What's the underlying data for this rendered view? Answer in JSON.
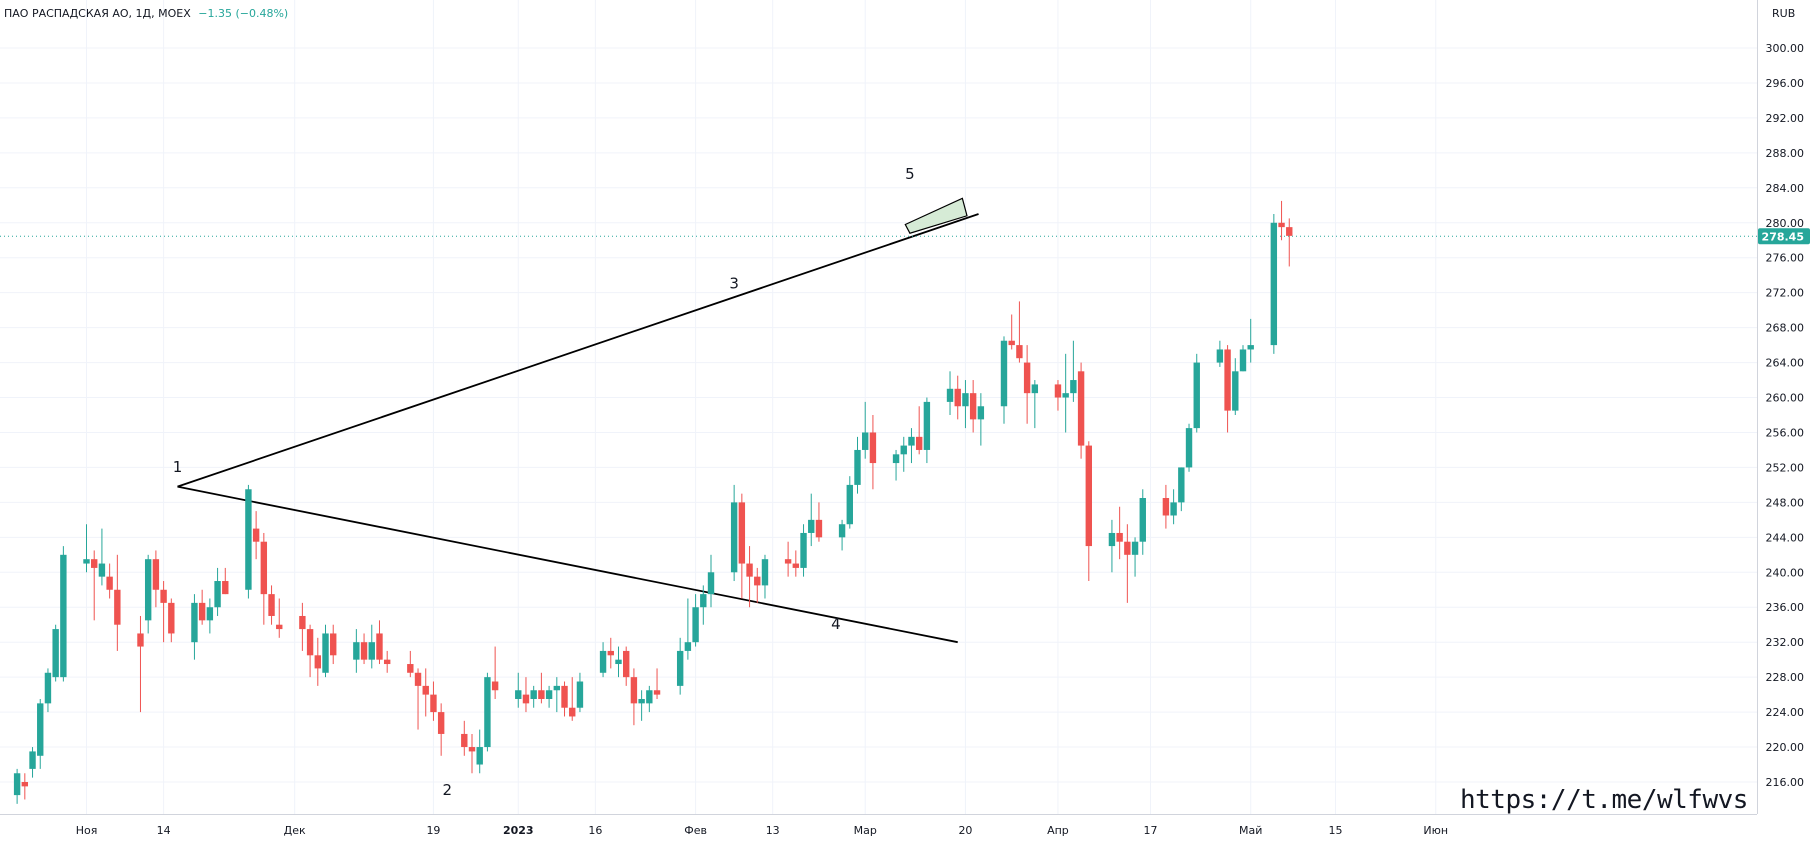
{
  "header": {
    "symbol": "ПАО РАСПАДСКАЯ АО, 1Д, MOEX",
    "change": "−1.35 (−0.48%)"
  },
  "currency": "RUB",
  "last_price_label": "278.45",
  "watermark_url": "https://t.me/wlfwvs",
  "colors": {
    "up": "#26a69a",
    "down": "#ef5350",
    "last_price": "#26a69a",
    "channel_fill": "#cfe8cf"
  },
  "chart_data": {
    "type": "candlestick",
    "y_axis": {
      "min": 212,
      "max": 302,
      "ticks": [
        216,
        220,
        224,
        228,
        232,
        236,
        240,
        244,
        248,
        252,
        256,
        260,
        264,
        268,
        272,
        276,
        280,
        284,
        288,
        292,
        296,
        300
      ]
    },
    "x_axis_labels": [
      {
        "label": "Ноя",
        "day": 0
      },
      {
        "label": "14",
        "day": 10
      },
      {
        "label": "Дек",
        "day": 27
      },
      {
        "label": "19",
        "day": 45
      },
      {
        "label": "2023",
        "day": 56
      },
      {
        "label": "16",
        "day": 66
      },
      {
        "label": "Фев",
        "day": 79
      },
      {
        "label": "13",
        "day": 89
      },
      {
        "label": "Мар",
        "day": 101
      },
      {
        "label": "20",
        "day": 114
      },
      {
        "label": "Апр",
        "day": 126
      },
      {
        "label": "17",
        "day": 138
      },
      {
        "label": "Май",
        "day": 151
      },
      {
        "label": "15",
        "day": 162
      },
      {
        "label": "Июн",
        "day": 175
      }
    ],
    "last_price": 278.45,
    "candles": [
      [
        -9,
        214.5,
        217.5,
        213.5,
        217.0
      ],
      [
        -8,
        216.0,
        217.0,
        214.0,
        215.5
      ],
      [
        -7,
        217.5,
        220.0,
        216.5,
        219.5
      ],
      [
        -6,
        219.0,
        225.5,
        217.5,
        225.0
      ],
      [
        -5,
        225.0,
        229.0,
        224.0,
        228.5
      ],
      [
        -4,
        228.0,
        234.0,
        227.5,
        233.5
      ],
      [
        -3,
        228.0,
        243.0,
        227.5,
        242.0
      ],
      [
        0,
        241.0,
        245.5,
        240.0,
        241.5
      ],
      [
        1,
        241.5,
        242.5,
        234.5,
        240.5
      ],
      [
        2,
        239.5,
        245.0,
        238.5,
        241.0
      ],
      [
        3,
        239.5,
        241.0,
        237.0,
        238.0
      ],
      [
        4,
        238.0,
        242.0,
        231.0,
        234.0
      ],
      [
        7,
        233.0,
        235.0,
        224.0,
        231.5
      ],
      [
        8,
        234.5,
        242.0,
        233.0,
        241.5
      ],
      [
        9,
        241.5,
        242.5,
        236.0,
        238.0
      ],
      [
        10,
        238.0,
        239.0,
        232.0,
        236.5
      ],
      [
        11,
        236.5,
        237.0,
        232.0,
        233.0
      ],
      [
        14,
        232.0,
        237.5,
        230.0,
        236.5
      ],
      [
        15,
        236.5,
        238.0,
        234.0,
        234.5
      ],
      [
        16,
        234.5,
        237.0,
        233.0,
        236.0
      ],
      [
        17,
        236.0,
        240.5,
        235.0,
        239.0
      ],
      [
        18,
        239.0,
        240.5,
        237.5,
        237.5
      ],
      [
        21,
        238.0,
        250.0,
        237.0,
        249.5
      ],
      [
        22,
        245.0,
        247.0,
        241.5,
        243.5
      ],
      [
        23,
        243.5,
        244.5,
        234.0,
        237.5
      ],
      [
        24,
        237.5,
        238.5,
        234.0,
        235.0
      ],
      [
        25,
        234.0,
        237.0,
        232.5,
        233.5
      ],
      [
        28,
        235.0,
        236.5,
        231.0,
        233.5
      ],
      [
        29,
        233.5,
        234.0,
        228.0,
        230.5
      ],
      [
        30,
        230.5,
        232.5,
        227.0,
        229.0
      ],
      [
        31,
        228.5,
        234.0,
        228.0,
        233.0
      ],
      [
        32,
        233.0,
        234.0,
        229.5,
        230.5
      ],
      [
        35,
        230.0,
        233.5,
        228.5,
        232.0
      ],
      [
        36,
        232.0,
        233.0,
        229.5,
        230.0
      ],
      [
        37,
        230.0,
        234.0,
        229.0,
        232.0
      ],
      [
        38,
        233.0,
        234.5,
        229.5,
        230.0
      ],
      [
        39,
        230.0,
        231.0,
        228.5,
        229.5
      ],
      [
        42,
        229.5,
        231.0,
        228.0,
        228.5
      ],
      [
        43,
        228.5,
        229.0,
        222.0,
        227.0
      ],
      [
        44,
        227.0,
        229.0,
        223.5,
        226.0
      ],
      [
        45,
        226.0,
        227.5,
        223.0,
        224.0
      ],
      [
        46,
        224.0,
        225.0,
        219.0,
        221.5
      ],
      [
        49,
        221.5,
        223.0,
        219.0,
        220.0
      ],
      [
        50,
        220.0,
        221.5,
        217.0,
        219.5
      ],
      [
        51,
        218.0,
        222.0,
        217.0,
        220.0
      ],
      [
        52,
        220.0,
        228.5,
        219.5,
        228.0
      ],
      [
        53,
        227.5,
        231.5,
        225.5,
        226.5
      ],
      [
        56,
        225.5,
        228.5,
        224.5,
        226.5
      ],
      [
        57,
        226.0,
        228.0,
        224.0,
        225.0
      ],
      [
        58,
        225.5,
        227.0,
        224.5,
        226.5
      ],
      [
        59,
        226.5,
        228.5,
        225.0,
        225.5
      ],
      [
        60,
        225.5,
        227.0,
        224.5,
        226.5
      ],
      [
        61,
        226.5,
        228.0,
        224.0,
        227.0
      ],
      [
        62,
        227.0,
        227.5,
        223.5,
        224.5
      ],
      [
        63,
        224.5,
        228.0,
        223.0,
        223.5
      ],
      [
        64,
        224.5,
        228.5,
        224.0,
        227.5
      ],
      [
        67,
        228.5,
        232.0,
        228.0,
        231.0
      ],
      [
        68,
        231.0,
        232.5,
        229.0,
        230.5
      ],
      [
        69,
        229.5,
        231.5,
        228.0,
        230.0
      ],
      [
        70,
        231.0,
        231.5,
        227.0,
        228.0
      ],
      [
        71,
        228.0,
        229.0,
        222.5,
        225.0
      ],
      [
        72,
        225.0,
        226.5,
        223.0,
        225.5
      ],
      [
        73,
        225.0,
        227.0,
        224.0,
        226.5
      ],
      [
        74,
        226.5,
        229.0,
        225.5,
        226.0
      ],
      [
        77,
        227.0,
        232.5,
        226.0,
        231.0
      ],
      [
        78,
        231.0,
        237.0,
        230.0,
        232.0
      ],
      [
        79,
        232.0,
        237.5,
        231.5,
        236.0
      ],
      [
        80,
        236.0,
        238.5,
        234.0,
        237.5
      ],
      [
        81,
        237.5,
        242.0,
        236.0,
        240.0
      ],
      [
        84,
        240.0,
        250.0,
        239.0,
        248.0
      ],
      [
        85,
        248.0,
        249.0,
        237.0,
        241.0
      ],
      [
        86,
        241.0,
        243.0,
        236.0,
        239.5
      ],
      [
        87,
        239.5,
        240.5,
        236.5,
        238.5
      ],
      [
        88,
        238.5,
        242.0,
        237.0,
        241.5
      ],
      [
        91,
        241.5,
        243.5,
        239.5,
        241.0
      ],
      [
        92,
        241.0,
        242.5,
        239.5,
        240.5
      ],
      [
        93,
        240.5,
        245.5,
        239.5,
        244.5
      ],
      [
        94,
        244.5,
        249.0,
        243.0,
        246.0
      ],
      [
        95,
        246.0,
        248.0,
        243.5,
        244.0
      ],
      [
        98,
        244.0,
        246.0,
        242.5,
        245.5
      ],
      [
        99,
        245.5,
        251.0,
        245.0,
        250.0
      ],
      [
        100,
        250.0,
        255.5,
        249.0,
        254.0
      ],
      [
        101,
        254.0,
        259.5,
        253.0,
        256.0
      ],
      [
        102,
        256.0,
        258.0,
        249.5,
        252.5
      ],
      [
        105,
        252.5,
        254.0,
        250.5,
        253.5
      ],
      [
        106,
        253.5,
        255.5,
        251.5,
        254.5
      ],
      [
        107,
        254.5,
        256.5,
        252.5,
        255.5
      ],
      [
        108,
        255.5,
        259.0,
        253.5,
        254.0
      ],
      [
        109,
        254.0,
        260.0,
        252.5,
        259.5
      ],
      [
        112,
        259.5,
        263.0,
        258.0,
        261.0
      ],
      [
        113,
        261.0,
        262.5,
        257.5,
        259.0
      ],
      [
        114,
        259.0,
        262.0,
        256.5,
        260.5
      ],
      [
        115,
        260.5,
        262.0,
        256.0,
        257.5
      ],
      [
        116,
        257.5,
        260.5,
        254.5,
        259.0
      ],
      [
        119,
        259.0,
        267.0,
        257.0,
        266.5
      ],
      [
        120,
        266.5,
        269.5,
        265.5,
        266.0
      ],
      [
        121,
        266.0,
        271.0,
        264.0,
        264.5
      ],
      [
        122,
        264.0,
        266.0,
        257.0,
        260.5
      ],
      [
        123,
        260.5,
        262.0,
        256.5,
        261.5
      ],
      [
        126,
        261.5,
        262.0,
        258.5,
        260.0
      ],
      [
        127,
        260.0,
        265.0,
        256.0,
        260.5
      ],
      [
        128,
        260.5,
        266.5,
        259.5,
        262.0
      ],
      [
        129,
        263.0,
        264.0,
        253.0,
        254.5
      ],
      [
        130,
        254.5,
        255.0,
        239.0,
        243.0
      ],
      [
        133,
        243.0,
        246.0,
        240.0,
        244.5
      ],
      [
        134,
        244.5,
        247.5,
        241.5,
        243.5
      ],
      [
        135,
        243.5,
        245.5,
        236.5,
        242.0
      ],
      [
        136,
        242.0,
        244.0,
        239.5,
        243.5
      ],
      [
        137,
        243.5,
        249.5,
        242.0,
        248.5
      ],
      [
        140,
        248.5,
        250.0,
        245.0,
        246.5
      ],
      [
        141,
        246.5,
        249.5,
        245.5,
        248.0
      ],
      [
        142,
        248.0,
        252.0,
        247.0,
        252.0
      ],
      [
        143,
        252.0,
        257.0,
        251.5,
        256.5
      ],
      [
        144,
        256.5,
        265.0,
        256.0,
        264.0
      ],
      [
        147,
        264.0,
        266.5,
        263.5,
        265.5
      ],
      [
        148,
        265.5,
        266.0,
        256.0,
        258.5
      ],
      [
        149,
        258.5,
        264.5,
        258.0,
        263.0
      ],
      [
        150,
        263.0,
        266.0,
        263.0,
        265.5
      ],
      [
        151,
        265.5,
        269.0,
        264.0,
        266.0
      ],
      [
        154,
        266.0,
        281.0,
        265.0,
        280.0
      ],
      [
        155,
        280.0,
        282.5,
        278.0,
        279.5
      ],
      [
        156,
        279.5,
        280.5,
        275.0,
        278.5
      ]
    ],
    "annotations": [
      {
        "text": "1",
        "x": 11.8,
        "y": 251.5
      },
      {
        "text": "2",
        "x": 46.8,
        "y": 214.5
      },
      {
        "text": "3",
        "x": 84.0,
        "y": 272.5
      },
      {
        "text": "4",
        "x": 97.2,
        "y": 233.5
      },
      {
        "text": "5",
        "x": 106.8,
        "y": 285.0
      }
    ],
    "trendlines": [
      {
        "from": [
          11.8,
          249.8
        ],
        "to": [
          115.7,
          281.0
        ]
      },
      {
        "from": [
          11.8,
          249.8
        ],
        "to": [
          113.0,
          232.0
        ]
      }
    ],
    "channel": [
      [
        106.2,
        279.8
      ],
      [
        113.6,
        282.8
      ],
      [
        114.2,
        280.8
      ],
      [
        106.8,
        278.8
      ]
    ]
  }
}
